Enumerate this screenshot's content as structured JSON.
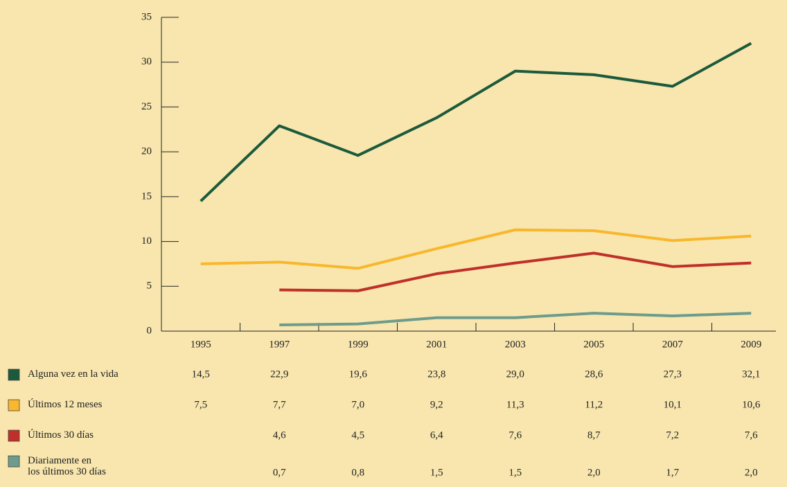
{
  "chart_data": {
    "type": "line",
    "categories": [
      "1995",
      "1997",
      "1999",
      "2001",
      "2003",
      "2005",
      "2007",
      "2009"
    ],
    "ylim": [
      0,
      35
    ],
    "yticks": [
      0,
      5,
      10,
      15,
      20,
      25,
      30,
      35
    ],
    "series": [
      {
        "name": "Alguna vez en la vida",
        "color": "#1c5a3c",
        "values": [
          14.5,
          22.9,
          19.6,
          23.8,
          29.0,
          28.6,
          27.3,
          32.1
        ],
        "value_labels": [
          "14,5",
          "22,9",
          "19,6",
          "23,8",
          "29,0",
          "28,6",
          "27,3",
          "32,1"
        ]
      },
      {
        "name": "Últimos 12 meses",
        "color": "#f8b72c",
        "values": [
          7.5,
          7.7,
          7.0,
          9.2,
          11.3,
          11.2,
          10.1,
          10.6
        ],
        "value_labels": [
          "7,5",
          "7,7",
          "7,0",
          "9,2",
          "11,3",
          "11,2",
          "10,1",
          "10,6"
        ]
      },
      {
        "name": "Últimos 30 días",
        "color": "#c0302a",
        "values": [
          null,
          4.6,
          4.5,
          6.4,
          7.6,
          8.7,
          7.2,
          7.6
        ],
        "value_labels": [
          null,
          "4,6",
          "4,5",
          "6,4",
          "7,6",
          "8,7",
          "7,2",
          "7,6"
        ]
      },
      {
        "name": "Diariamente en\nlos últimos 30 días",
        "color": "#6d9c8c",
        "values": [
          null,
          0.7,
          0.8,
          1.5,
          1.5,
          2.0,
          1.7,
          2.0
        ],
        "value_labels": [
          null,
          "0,7",
          "0,8",
          "1,5",
          "1,5",
          "2,0",
          "1,7",
          "2,0"
        ]
      }
    ]
  }
}
